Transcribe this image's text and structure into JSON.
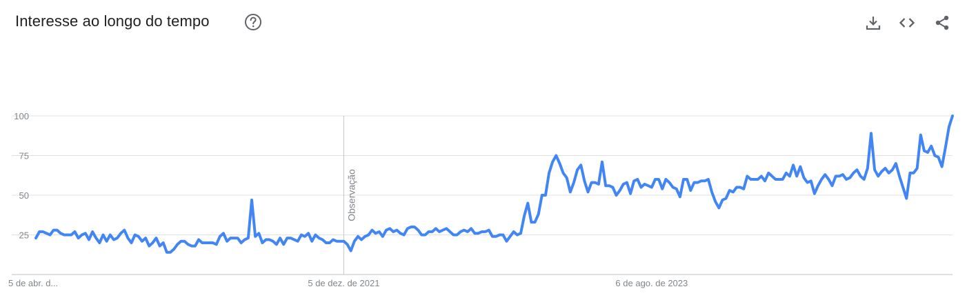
{
  "header": {
    "title": "Interesse ao longo do tempo",
    "help_icon": "help-circle-icon",
    "actions": [
      {
        "icon": "download-icon"
      },
      {
        "icon": "embed-code-icon"
      },
      {
        "icon": "share-icon"
      }
    ]
  },
  "colors": {
    "line": "#4285f4",
    "grid": "#e0e0e0",
    "axis": "#bdc1c6",
    "tick_text": "#80868b",
    "title": "#202124",
    "icon": "#5f6368"
  },
  "chart_data": {
    "type": "line",
    "title": "Interesse ao longo do tempo",
    "xlabel": "",
    "ylabel": "",
    "ylim": [
      0,
      100
    ],
    "y_ticks": [
      25,
      50,
      75,
      100
    ],
    "x_tick_labels": [
      {
        "index": 0,
        "label": "5 de abr. d..."
      },
      {
        "index": 87,
        "label": "5 de dez. de 2021"
      },
      {
        "index": 174,
        "label": "6 de ago. de 2023"
      }
    ],
    "annotation": {
      "index": 87,
      "label": "Observação"
    },
    "grid": true,
    "series": [
      {
        "values": [
          23,
          27,
          27,
          26,
          25,
          28,
          28,
          26,
          25,
          25,
          25,
          27,
          23,
          25,
          26,
          22,
          27,
          23,
          20,
          25,
          21,
          25,
          22,
          23,
          26,
          28,
          23,
          20,
          25,
          24,
          21,
          23,
          18,
          20,
          23,
          18,
          20,
          14,
          14,
          16,
          19,
          21,
          21,
          19,
          18,
          18,
          22,
          20,
          20,
          20,
          20,
          19,
          24,
          26,
          21,
          23,
          23,
          23,
          20,
          22,
          23,
          47,
          24,
          26,
          20,
          22,
          22,
          21,
          19,
          23,
          19,
          23,
          23,
          22,
          21,
          25,
          24,
          26,
          21,
          25,
          23,
          22,
          20,
          20,
          22,
          21,
          21,
          21,
          19,
          15,
          21,
          24,
          22,
          24,
          25,
          28,
          26,
          27,
          24,
          28,
          29,
          27,
          28,
          26,
          25,
          29,
          30,
          30,
          28,
          25,
          25,
          27,
          27,
          29,
          27,
          28,
          29,
          27,
          25,
          25,
          27,
          28,
          27,
          29,
          26,
          26,
          27,
          27,
          28,
          24,
          24,
          25,
          25,
          21,
          24,
          27,
          25,
          26,
          37,
          45,
          33,
          33,
          38,
          50,
          50,
          64,
          71,
          75,
          70,
          64,
          61,
          52,
          58,
          66,
          69,
          59,
          52,
          58,
          58,
          57,
          71,
          56,
          56,
          55,
          50,
          53,
          57,
          58,
          51,
          59,
          60,
          55,
          57,
          56,
          55,
          60,
          60,
          54,
          60,
          58,
          55,
          54,
          49,
          60,
          60,
          53,
          58,
          58,
          59,
          59,
          60,
          52,
          46,
          42,
          47,
          48,
          53,
          52,
          55,
          55,
          54,
          62,
          60,
          60,
          60,
          62,
          59,
          64,
          62,
          60,
          60,
          60,
          64,
          62,
          69,
          62,
          68,
          61,
          58,
          59,
          51,
          56,
          60,
          63,
          60,
          56,
          62,
          62,
          63,
          60,
          61,
          64,
          66,
          62,
          60,
          67,
          89,
          66,
          62,
          65,
          67,
          64,
          66,
          70,
          62,
          55,
          48,
          64,
          64,
          67,
          88,
          78,
          77,
          81,
          75,
          74,
          68,
          80,
          93,
          100
        ]
      }
    ]
  }
}
